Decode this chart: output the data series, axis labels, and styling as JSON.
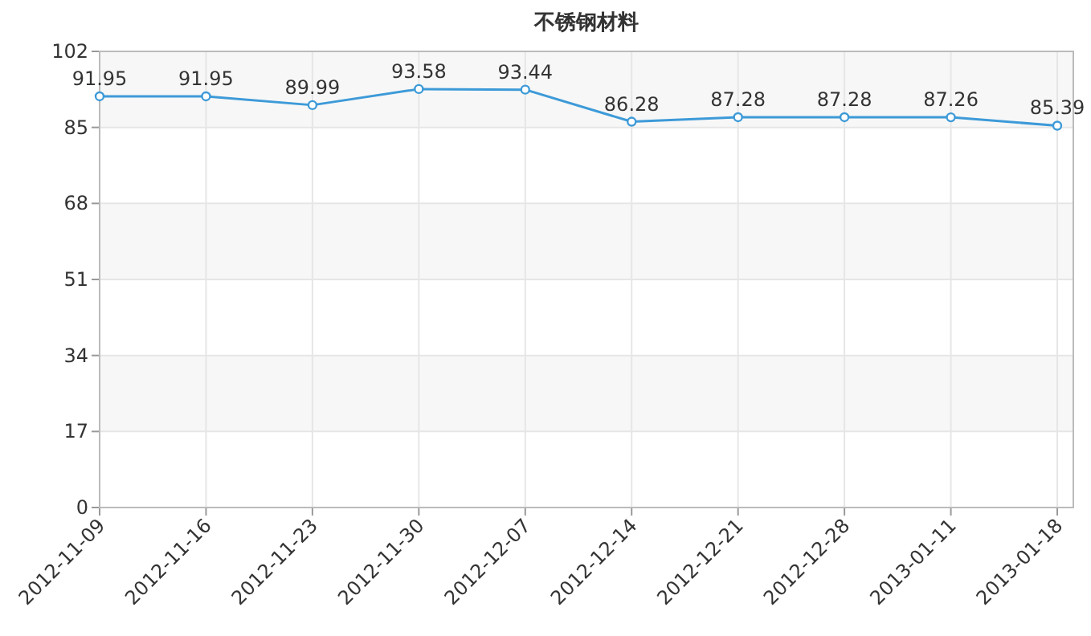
{
  "chart_data": {
    "type": "line",
    "title": "不锈钢材料",
    "categories": [
      "2012-11-09",
      "2012-11-16",
      "2012-11-23",
      "2012-11-30",
      "2012-12-07",
      "2012-12-14",
      "2012-12-21",
      "2012-12-28",
      "2013-01-11",
      "2013-01-18"
    ],
    "values": [
      91.95,
      91.95,
      89.99,
      93.58,
      93.44,
      86.28,
      87.28,
      87.28,
      87.26,
      85.39
    ],
    "color": "#3d9ad8",
    "ylim": [
      0,
      102
    ],
    "yticks": [
      0,
      17,
      34,
      51,
      68,
      85,
      102
    ],
    "grid": true,
    "marker": "circle",
    "data_labels": true
  }
}
